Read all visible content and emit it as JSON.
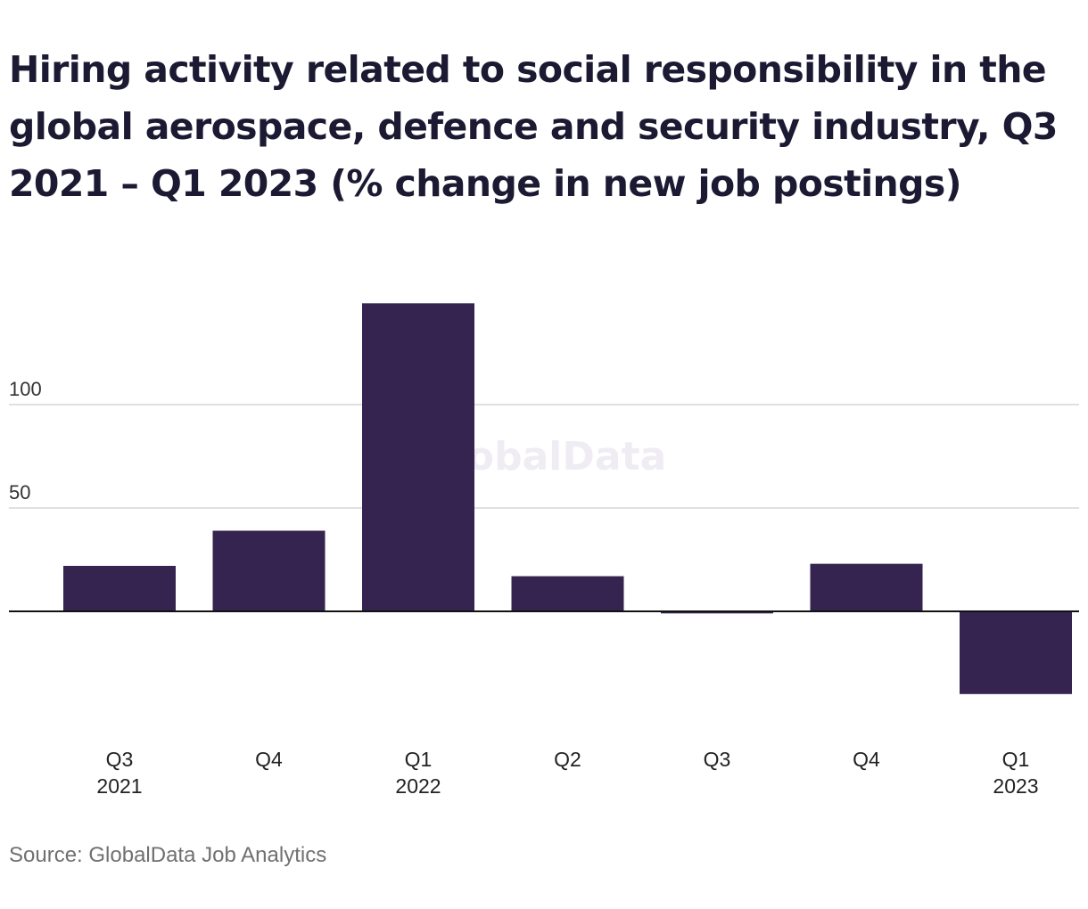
{
  "chart_data": {
    "type": "bar",
    "title": "Hiring activity related to social responsibility in the global aerospace, defence and security industry, Q3 2021 – Q1 2023 (% change in new job postings)",
    "categories": [
      {
        "label": "Q3",
        "year": "2021"
      },
      {
        "label": "Q4",
        "year": ""
      },
      {
        "label": "Q1",
        "year": "2022"
      },
      {
        "label": "Q2",
        "year": ""
      },
      {
        "label": "Q3",
        "year": ""
      },
      {
        "label": "Q4",
        "year": ""
      },
      {
        "label": "Q1",
        "year": "2023"
      }
    ],
    "values": [
      22,
      39,
      149,
      17,
      -1,
      23,
      -40
    ],
    "yticks": [
      50,
      100
    ],
    "ylim": [
      -52,
      170
    ],
    "grid": true,
    "bar_color": "#35244f",
    "watermark": "GlobalData",
    "source": "Source: GlobalData Job Analytics"
  }
}
